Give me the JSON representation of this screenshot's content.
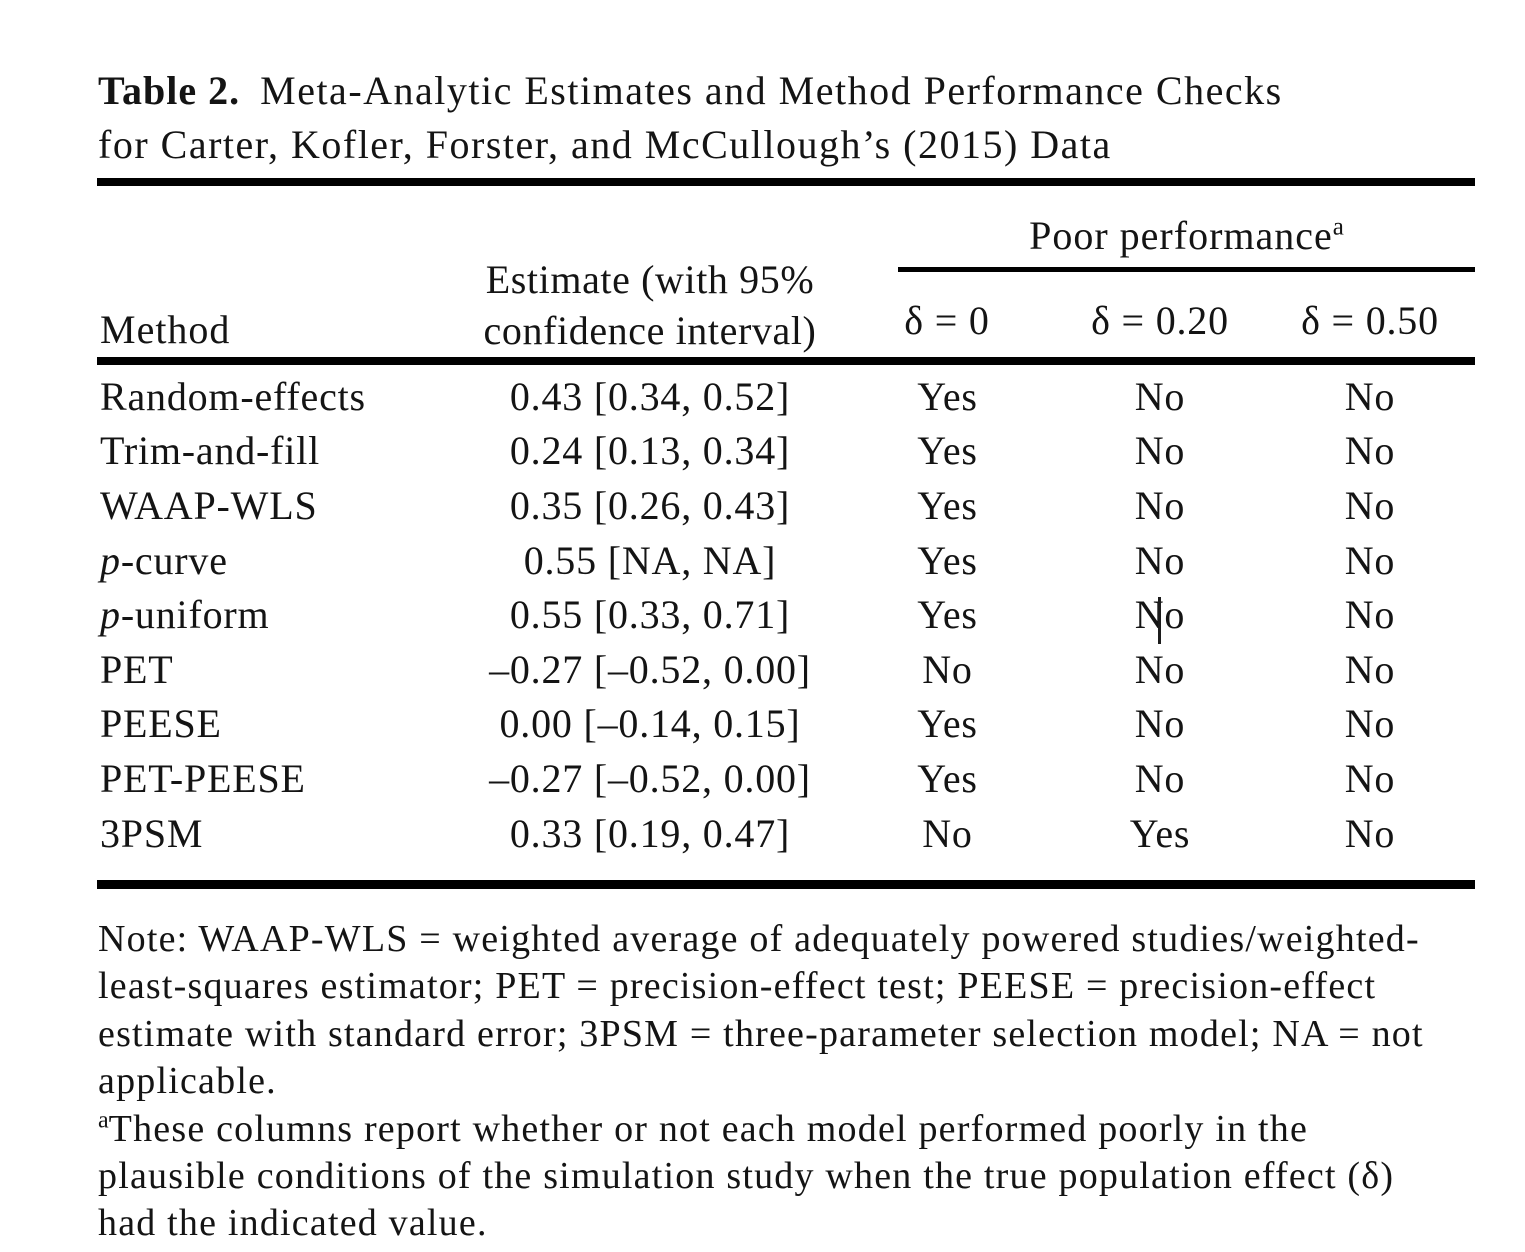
{
  "title": {
    "label": "Table 2.",
    "line1": "Meta-Analytic Estimates and Method Performance Checks",
    "line2": "for Carter, Kofler, Forster, and McCullough’s (2015) Data"
  },
  "table": {
    "spanner": {
      "label": "Poor performance",
      "superscript": "a"
    },
    "columns": {
      "method": "Method",
      "estimate_line1": "Estimate (with 95%",
      "estimate_line2": "confidence interval)",
      "delta0": "δ = 0",
      "delta20": "δ = 0.20",
      "delta50": "δ = 0.50"
    },
    "rows": [
      {
        "method_prefix": "",
        "method": "Random-effects",
        "estimate": "0.43 [0.34, 0.52]",
        "d0": "Yes",
        "d20": "No",
        "d50": "No"
      },
      {
        "method_prefix": "",
        "method": "Trim-and-fill",
        "estimate": "0.24 [0.13, 0.34]",
        "d0": "Yes",
        "d20": "No",
        "d50": "No"
      },
      {
        "method_prefix": "",
        "method": "WAAP-WLS",
        "estimate": "0.35 [0.26, 0.43]",
        "d0": "Yes",
        "d20": "No",
        "d50": "No"
      },
      {
        "method_prefix": "p",
        "method": "-curve",
        "estimate": "0.55 [NA, NA]",
        "d0": "Yes",
        "d20": "No",
        "d50": "No"
      },
      {
        "method_prefix": "p",
        "method": "-uniform",
        "estimate": "0.55 [0.33, 0.71]",
        "d0": "Yes",
        "d20": "No",
        "d50": "No"
      },
      {
        "method_prefix": "",
        "method": "PET",
        "estimate": "–0.27 [–0.52, 0.00]",
        "d0": "No",
        "d20": "No",
        "d50": "No"
      },
      {
        "method_prefix": "",
        "method": "PEESE",
        "estimate": "0.00 [–0.14, 0.15]",
        "d0": "Yes",
        "d20": "No",
        "d50": "No"
      },
      {
        "method_prefix": "",
        "method": "PET-PEESE",
        "estimate": "–0.27 [–0.52, 0.00]",
        "d0": "Yes",
        "d20": "No",
        "d50": "No"
      },
      {
        "method_prefix": "",
        "method": "3PSM",
        "estimate": "0.33 [0.19, 0.47]",
        "d0": "No",
        "d20": "Yes",
        "d50": "No"
      }
    ]
  },
  "notes": {
    "lines": [
      "Note: WAAP-WLS = weighted average of adequately powered studies/weighted-",
      "least-squares estimator; PET = precision-effect test; PEESE = precision-effect",
      "estimate with standard error; 3PSM = three-parameter selection model; NA = not",
      "applicable."
    ],
    "footnote_marker": "a",
    "footnote_lines": [
      "These columns report whether or not each model performed poorly in the",
      "plausible conditions of the simulation study when the true population effect (δ)",
      "had the indicated value."
    ]
  },
  "colors": {
    "text": "#141414",
    "rule": "#000000",
    "background": "#ffffff"
  }
}
